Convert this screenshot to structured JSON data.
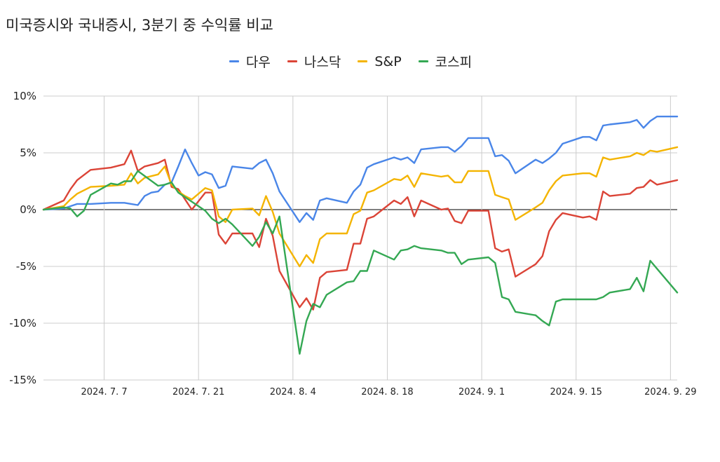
{
  "title": "미국증시와 국내증시, 3분기 중 수익률 비교",
  "chart_data": {
    "type": "line",
    "title": "미국증시와 국내증시, 3분기 중 수익률 비교",
    "xlabel": "",
    "ylabel": "",
    "ylim": [
      -15,
      10
    ],
    "xlim": [
      "2024-06-28",
      "2024-09-30"
    ],
    "y_ticks": [
      10,
      5,
      0,
      -5,
      -10,
      -15
    ],
    "y_tick_labels": [
      "10%",
      "5%",
      "0%",
      "-5%",
      "-10%",
      "-15%"
    ],
    "x_ticks": [
      "2024-07-07",
      "2024-07-21",
      "2024-08-04",
      "2024-08-18",
      "2024-09-01",
      "2024-09-15",
      "2024-09-29"
    ],
    "x_tick_labels": [
      "2024. 7. 7",
      "2024. 7. 21",
      "2024. 8. 4",
      "2024. 8. 18",
      "2024. 9. 1",
      "2024. 9. 15",
      "2024. 9. 29"
    ],
    "grid": true,
    "legend_position": "top",
    "series": [
      {
        "name": "다우",
        "color": "#4a86e8",
        "points": [
          [
            "2024-06-28",
            0
          ],
          [
            "2024-07-01",
            0.1
          ],
          [
            "2024-07-02",
            0.3
          ],
          [
            "2024-07-03",
            0.5
          ],
          [
            "2024-07-05",
            0.5
          ],
          [
            "2024-07-08",
            0.6
          ],
          [
            "2024-07-10",
            0.6
          ],
          [
            "2024-07-11",
            0.5
          ],
          [
            "2024-07-12",
            0.4
          ],
          [
            "2024-07-13",
            1.2
          ],
          [
            "2024-07-14",
            1.5
          ],
          [
            "2024-07-15",
            1.6
          ],
          [
            "2024-07-16",
            2.2
          ],
          [
            "2024-07-17",
            2.4
          ],
          [
            "2024-07-18",
            3.8
          ],
          [
            "2024-07-19",
            5.3
          ],
          [
            "2024-07-20",
            4.1
          ],
          [
            "2024-07-21",
            3.0
          ],
          [
            "2024-07-22",
            3.3
          ],
          [
            "2024-07-23",
            3.1
          ],
          [
            "2024-07-24",
            1.9
          ],
          [
            "2024-07-25",
            2.1
          ],
          [
            "2024-07-26",
            3.8
          ],
          [
            "2024-07-29",
            3.6
          ],
          [
            "2024-07-30",
            4.1
          ],
          [
            "2024-07-31",
            4.4
          ],
          [
            "2024-08-01",
            3.2
          ],
          [
            "2024-08-02",
            1.6
          ],
          [
            "2024-08-05",
            -1.1
          ],
          [
            "2024-08-06",
            -0.3
          ],
          [
            "2024-08-07",
            -0.9
          ],
          [
            "2024-08-08",
            0.8
          ],
          [
            "2024-08-09",
            1.0
          ],
          [
            "2024-08-12",
            0.6
          ],
          [
            "2024-08-13",
            1.6
          ],
          [
            "2024-08-14",
            2.2
          ],
          [
            "2024-08-15",
            3.7
          ],
          [
            "2024-08-16",
            4.0
          ],
          [
            "2024-08-19",
            4.6
          ],
          [
            "2024-08-20",
            4.4
          ],
          [
            "2024-08-21",
            4.6
          ],
          [
            "2024-08-22",
            4.1
          ],
          [
            "2024-08-23",
            5.3
          ],
          [
            "2024-08-26",
            5.5
          ],
          [
            "2024-08-27",
            5.5
          ],
          [
            "2024-08-28",
            5.1
          ],
          [
            "2024-08-29",
            5.6
          ],
          [
            "2024-08-30",
            6.3
          ],
          [
            "2024-09-02",
            6.3
          ],
          [
            "2024-09-03",
            4.7
          ],
          [
            "2024-09-04",
            4.8
          ],
          [
            "2024-09-05",
            4.3
          ],
          [
            "2024-09-06",
            3.2
          ],
          [
            "2024-09-09",
            4.4
          ],
          [
            "2024-09-10",
            4.1
          ],
          [
            "2024-09-11",
            4.5
          ],
          [
            "2024-09-12",
            5.0
          ],
          [
            "2024-09-13",
            5.8
          ],
          [
            "2024-09-16",
            6.4
          ],
          [
            "2024-09-17",
            6.4
          ],
          [
            "2024-09-18",
            6.1
          ],
          [
            "2024-09-19",
            7.4
          ],
          [
            "2024-09-20",
            7.5
          ],
          [
            "2024-09-23",
            7.7
          ],
          [
            "2024-09-24",
            7.9
          ],
          [
            "2024-09-25",
            7.2
          ],
          [
            "2024-09-26",
            7.8
          ],
          [
            "2024-09-27",
            8.2
          ],
          [
            "2024-09-30",
            8.2
          ]
        ]
      },
      {
        "name": "나스닥",
        "color": "#db4437",
        "points": [
          [
            "2024-06-28",
            0
          ],
          [
            "2024-07-01",
            0.8
          ],
          [
            "2024-07-02",
            1.8
          ],
          [
            "2024-07-03",
            2.6
          ],
          [
            "2024-07-05",
            3.5
          ],
          [
            "2024-07-08",
            3.7
          ],
          [
            "2024-07-10",
            4.0
          ],
          [
            "2024-07-11",
            5.2
          ],
          [
            "2024-07-12",
            3.4
          ],
          [
            "2024-07-13",
            3.8
          ],
          [
            "2024-07-15",
            4.1
          ],
          [
            "2024-07-16",
            4.4
          ],
          [
            "2024-07-17",
            2.0
          ],
          [
            "2024-07-18",
            1.8
          ],
          [
            "2024-07-19",
            0.9
          ],
          [
            "2024-07-20",
            0.0
          ],
          [
            "2024-07-22",
            1.5
          ],
          [
            "2024-07-23",
            1.5
          ],
          [
            "2024-07-24",
            -2.2
          ],
          [
            "2024-07-25",
            -3.0
          ],
          [
            "2024-07-26",
            -2.1
          ],
          [
            "2024-07-29",
            -2.1
          ],
          [
            "2024-07-30",
            -3.3
          ],
          [
            "2024-07-31",
            -0.8
          ],
          [
            "2024-08-01",
            -2.3
          ],
          [
            "2024-08-02",
            -5.4
          ],
          [
            "2024-08-05",
            -8.6
          ],
          [
            "2024-08-06",
            -7.8
          ],
          [
            "2024-08-07",
            -8.8
          ],
          [
            "2024-08-08",
            -6.0
          ],
          [
            "2024-08-09",
            -5.5
          ],
          [
            "2024-08-12",
            -5.3
          ],
          [
            "2024-08-13",
            -3.0
          ],
          [
            "2024-08-14",
            -3.0
          ],
          [
            "2024-08-15",
            -0.8
          ],
          [
            "2024-08-16",
            -0.6
          ],
          [
            "2024-08-19",
            0.8
          ],
          [
            "2024-08-20",
            0.5
          ],
          [
            "2024-08-21",
            1.1
          ],
          [
            "2024-08-22",
            -0.6
          ],
          [
            "2024-08-23",
            0.8
          ],
          [
            "2024-08-26",
            0.0
          ],
          [
            "2024-08-27",
            0.1
          ],
          [
            "2024-08-28",
            -1.0
          ],
          [
            "2024-08-29",
            -1.2
          ],
          [
            "2024-08-30",
            -0.1
          ],
          [
            "2024-09-02",
            -0.1
          ],
          [
            "2024-09-03",
            -3.4
          ],
          [
            "2024-09-04",
            -3.7
          ],
          [
            "2024-09-05",
            -3.5
          ],
          [
            "2024-09-06",
            -5.9
          ],
          [
            "2024-09-09",
            -4.8
          ],
          [
            "2024-09-10",
            -4.1
          ],
          [
            "2024-09-11",
            -1.9
          ],
          [
            "2024-09-12",
            -0.9
          ],
          [
            "2024-09-13",
            -0.3
          ],
          [
            "2024-09-16",
            -0.7
          ],
          [
            "2024-09-17",
            -0.6
          ],
          [
            "2024-09-18",
            -0.9
          ],
          [
            "2024-09-19",
            1.6
          ],
          [
            "2024-09-20",
            1.2
          ],
          [
            "2024-09-23",
            1.4
          ],
          [
            "2024-09-24",
            1.9
          ],
          [
            "2024-09-25",
            2.0
          ],
          [
            "2024-09-26",
            2.6
          ],
          [
            "2024-09-27",
            2.2
          ],
          [
            "2024-09-30",
            2.6
          ]
        ]
      },
      {
        "name": "S&P",
        "color": "#f4b400",
        "points": [
          [
            "2024-06-28",
            0
          ],
          [
            "2024-07-01",
            0.3
          ],
          [
            "2024-07-02",
            0.9
          ],
          [
            "2024-07-03",
            1.4
          ],
          [
            "2024-07-05",
            2.0
          ],
          [
            "2024-07-08",
            2.1
          ],
          [
            "2024-07-10",
            2.2
          ],
          [
            "2024-07-11",
            3.2
          ],
          [
            "2024-07-12",
            2.3
          ],
          [
            "2024-07-13",
            2.8
          ],
          [
            "2024-07-15",
            3.1
          ],
          [
            "2024-07-16",
            3.8
          ],
          [
            "2024-07-17",
            2.2
          ],
          [
            "2024-07-18",
            1.6
          ],
          [
            "2024-07-19",
            1.2
          ],
          [
            "2024-07-20",
            0.9
          ],
          [
            "2024-07-22",
            1.9
          ],
          [
            "2024-07-23",
            1.7
          ],
          [
            "2024-07-24",
            -0.6
          ],
          [
            "2024-07-25",
            -1.1
          ],
          [
            "2024-07-26",
            0.0
          ],
          [
            "2024-07-29",
            0.1
          ],
          [
            "2024-07-30",
            -0.5
          ],
          [
            "2024-07-31",
            1.2
          ],
          [
            "2024-08-01",
            -0.2
          ],
          [
            "2024-08-02",
            -2.1
          ],
          [
            "2024-08-05",
            -5.0
          ],
          [
            "2024-08-06",
            -4.0
          ],
          [
            "2024-08-07",
            -4.7
          ],
          [
            "2024-08-08",
            -2.6
          ],
          [
            "2024-08-09",
            -2.1
          ],
          [
            "2024-08-12",
            -2.1
          ],
          [
            "2024-08-13",
            -0.4
          ],
          [
            "2024-08-14",
            -0.1
          ],
          [
            "2024-08-15",
            1.5
          ],
          [
            "2024-08-16",
            1.7
          ],
          [
            "2024-08-19",
            2.7
          ],
          [
            "2024-08-20",
            2.6
          ],
          [
            "2024-08-21",
            3.0
          ],
          [
            "2024-08-22",
            2.0
          ],
          [
            "2024-08-23",
            3.2
          ],
          [
            "2024-08-26",
            2.9
          ],
          [
            "2024-08-27",
            3.0
          ],
          [
            "2024-08-28",
            2.4
          ],
          [
            "2024-08-29",
            2.4
          ],
          [
            "2024-08-30",
            3.4
          ],
          [
            "2024-09-02",
            3.4
          ],
          [
            "2024-09-03",
            1.3
          ],
          [
            "2024-09-04",
            1.1
          ],
          [
            "2024-09-05",
            0.9
          ],
          [
            "2024-09-06",
            -0.9
          ],
          [
            "2024-09-09",
            0.2
          ],
          [
            "2024-09-10",
            0.6
          ],
          [
            "2024-09-11",
            1.7
          ],
          [
            "2024-09-12",
            2.5
          ],
          [
            "2024-09-13",
            3.0
          ],
          [
            "2024-09-16",
            3.2
          ],
          [
            "2024-09-17",
            3.2
          ],
          [
            "2024-09-18",
            2.9
          ],
          [
            "2024-09-19",
            4.6
          ],
          [
            "2024-09-20",
            4.4
          ],
          [
            "2024-09-23",
            4.7
          ],
          [
            "2024-09-24",
            5.0
          ],
          [
            "2024-09-25",
            4.8
          ],
          [
            "2024-09-26",
            5.2
          ],
          [
            "2024-09-27",
            5.1
          ],
          [
            "2024-09-30",
            5.5
          ]
        ]
      },
      {
        "name": "코스피",
        "color": "#34a853",
        "points": [
          [
            "2024-06-28",
            0
          ],
          [
            "2024-07-01",
            0.2
          ],
          [
            "2024-07-02",
            0.1
          ],
          [
            "2024-07-03",
            -0.6
          ],
          [
            "2024-07-04",
            -0.1
          ],
          [
            "2024-07-05",
            1.3
          ],
          [
            "2024-07-08",
            2.3
          ],
          [
            "2024-07-09",
            2.2
          ],
          [
            "2024-07-10",
            2.5
          ],
          [
            "2024-07-11",
            2.5
          ],
          [
            "2024-07-12",
            3.4
          ],
          [
            "2024-07-15",
            2.1
          ],
          [
            "2024-07-16",
            2.2
          ],
          [
            "2024-07-17",
            2.4
          ],
          [
            "2024-07-18",
            1.5
          ],
          [
            "2024-07-19",
            1.1
          ],
          [
            "2024-07-22",
            -0.1
          ],
          [
            "2024-07-23",
            -0.8
          ],
          [
            "2024-07-24",
            -1.2
          ],
          [
            "2024-07-25",
            -0.8
          ],
          [
            "2024-07-26",
            -1.3
          ],
          [
            "2024-07-29",
            -3.2
          ],
          [
            "2024-07-30",
            -2.4
          ],
          [
            "2024-07-31",
            -1.1
          ],
          [
            "2024-08-01",
            -2.1
          ],
          [
            "2024-08-02",
            -0.6
          ],
          [
            "2024-08-05",
            -12.7
          ],
          [
            "2024-08-06",
            -9.8
          ],
          [
            "2024-08-07",
            -8.3
          ],
          [
            "2024-08-08",
            -8.6
          ],
          [
            "2024-08-09",
            -7.5
          ],
          [
            "2024-08-12",
            -6.4
          ],
          [
            "2024-08-13",
            -6.3
          ],
          [
            "2024-08-14",
            -5.4
          ],
          [
            "2024-08-15",
            -5.4
          ],
          [
            "2024-08-16",
            -3.6
          ],
          [
            "2024-08-19",
            -4.4
          ],
          [
            "2024-08-20",
            -3.6
          ],
          [
            "2024-08-21",
            -3.5
          ],
          [
            "2024-08-22",
            -3.2
          ],
          [
            "2024-08-23",
            -3.4
          ],
          [
            "2024-08-26",
            -3.6
          ],
          [
            "2024-08-27",
            -3.8
          ],
          [
            "2024-08-28",
            -3.8
          ],
          [
            "2024-08-29",
            -4.8
          ],
          [
            "2024-08-30",
            -4.4
          ],
          [
            "2024-09-02",
            -4.2
          ],
          [
            "2024-09-03",
            -4.7
          ],
          [
            "2024-09-04",
            -7.7
          ],
          [
            "2024-09-05",
            -7.9
          ],
          [
            "2024-09-06",
            -9.0
          ],
          [
            "2024-09-09",
            -9.3
          ],
          [
            "2024-09-10",
            -9.8
          ],
          [
            "2024-09-11",
            -10.2
          ],
          [
            "2024-09-12",
            -8.1
          ],
          [
            "2024-09-13",
            -7.9
          ],
          [
            "2024-09-18",
            -7.9
          ],
          [
            "2024-09-19",
            -7.7
          ],
          [
            "2024-09-20",
            -7.3
          ],
          [
            "2024-09-23",
            -7.0
          ],
          [
            "2024-09-24",
            -6.0
          ],
          [
            "2024-09-25",
            -7.2
          ],
          [
            "2024-09-26",
            -4.5
          ],
          [
            "2024-09-30",
            -7.3
          ]
        ]
      }
    ]
  }
}
